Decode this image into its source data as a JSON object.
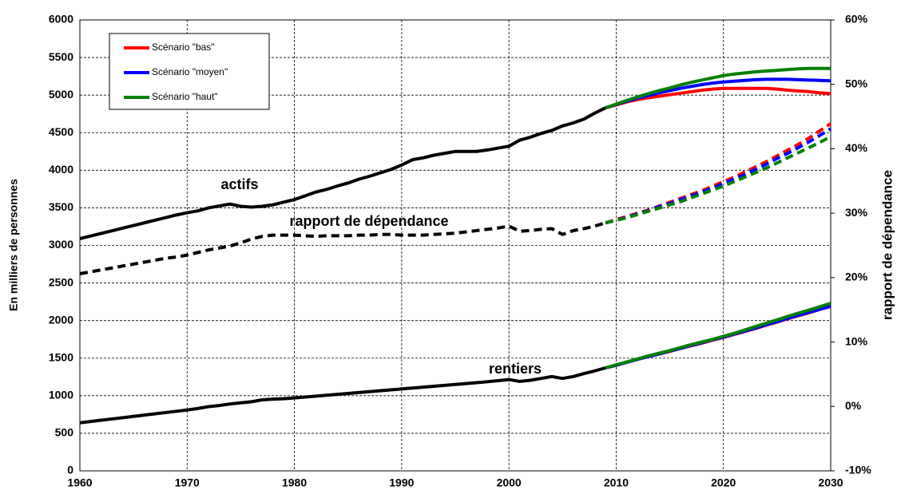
{
  "chart_data": {
    "type": "line",
    "y_label": "En milliers de personnes",
    "y2_label": "rapport de dépendance",
    "xlim": [
      1960,
      2030
    ],
    "xticks": [
      1960,
      1970,
      1980,
      1990,
      2000,
      2010,
      2020,
      2030
    ],
    "ylim": [
      0,
      6000
    ],
    "yticks": [
      0,
      500,
      1000,
      1500,
      2000,
      2500,
      3000,
      3500,
      4000,
      4500,
      5000,
      5500,
      6000
    ],
    "y2lim": [
      -10,
      60
    ],
    "y2ticks": [
      {
        "value": -10,
        "label": "-10%"
      },
      {
        "value": 0,
        "label": "0%"
      },
      {
        "value": 10,
        "label": "10%"
      },
      {
        "value": 20,
        "label": "20%"
      },
      {
        "value": 30,
        "label": "30%"
      },
      {
        "value": 40,
        "label": "40%"
      },
      {
        "value": 50,
        "label": "50%"
      },
      {
        "value": 60,
        "label": "60%"
      }
    ],
    "grid": true,
    "legend": "upper left",
    "x": [
      1960,
      1961,
      1962,
      1963,
      1964,
      1965,
      1966,
      1967,
      1968,
      1969,
      1970,
      1971,
      1972,
      1973,
      1974,
      1975,
      1976,
      1977,
      1978,
      1979,
      1980,
      1981,
      1982,
      1983,
      1984,
      1985,
      1986,
      1987,
      1988,
      1989,
      1990,
      1991,
      1992,
      1993,
      1994,
      1995,
      1996,
      1997,
      1998,
      1999,
      2000,
      2001,
      2002,
      2003,
      2004,
      2005,
      2006,
      2007,
      2008,
      2009
    ],
    "x_projection": [
      2009,
      2010,
      2011,
      2012,
      2013,
      2014,
      2015,
      2016,
      2017,
      2018,
      2019,
      2020,
      2021,
      2022,
      2023,
      2024,
      2025,
      2026,
      2027,
      2028,
      2029,
      2030
    ],
    "series": [
      {
        "name": "actifs",
        "color": "#000000",
        "values": [
          3090,
          3125,
          3160,
          3195,
          3230,
          3265,
          3300,
          3335,
          3370,
          3405,
          3435,
          3460,
          3500,
          3525,
          3550,
          3520,
          3510,
          3520,
          3540,
          3575,
          3610,
          3660,
          3710,
          3745,
          3790,
          3830,
          3880,
          3920,
          3965,
          4010,
          4070,
          4140,
          4165,
          4200,
          4225,
          4250,
          4250,
          4250,
          4270,
          4295,
          4320,
          4400,
          4440,
          4490,
          4530,
          4590,
          4630,
          4680,
          4760,
          4830
        ]
      },
      {
        "name": "rentiers",
        "color": "#000000",
        "values": [
          640,
          657,
          674,
          691,
          708,
          725,
          742,
          759,
          776,
          793,
          810,
          830,
          855,
          870,
          890,
          905,
          920,
          945,
          955,
          960,
          970,
          982,
          994,
          1006,
          1018,
          1030,
          1042,
          1054,
          1066,
          1078,
          1090,
          1102,
          1114,
          1126,
          1138,
          1150,
          1162,
          1174,
          1186,
          1200,
          1215,
          1190,
          1205,
          1230,
          1255,
          1230,
          1255,
          1295,
          1330,
          1370
        ]
      },
      {
        "name": "rapport de dépendance",
        "color": "#000000",
        "axis": "y2",
        "dashed": true,
        "values": [
          20.6,
          20.9,
          21.2,
          21.5,
          21.8,
          22.1,
          22.4,
          22.7,
          23.0,
          23.2,
          23.5,
          23.9,
          24.3,
          24.6,
          24.9,
          25.4,
          26.0,
          26.4,
          26.6,
          26.6,
          26.6,
          26.5,
          26.4,
          26.5,
          26.5,
          26.5,
          26.6,
          26.6,
          26.7,
          26.7,
          26.6,
          26.6,
          26.6,
          26.7,
          26.8,
          26.9,
          27.1,
          27.3,
          27.5,
          27.7,
          28.0,
          27.2,
          27.3,
          27.5,
          27.6,
          26.7,
          27.3,
          27.6,
          28.0,
          28.5
        ]
      }
    ],
    "scenarios": [
      {
        "name": "Scénario \"bas\"",
        "color": "#ff0000",
        "actifs": [
          4830,
          4870,
          4910,
          4940,
          4965,
          4985,
          5005,
          5025,
          5045,
          5065,
          5080,
          5090,
          5090,
          5090,
          5090,
          5090,
          5080,
          5065,
          5055,
          5045,
          5030,
          5020
        ],
        "rentiers": [
          1370,
          1405,
          1445,
          1485,
          1520,
          1555,
          1590,
          1630,
          1665,
          1700,
          1740,
          1775,
          1815,
          1855,
          1895,
          1940,
          1980,
          2025,
          2065,
          2105,
          2150,
          2190
        ],
        "rapport": [
          28.5,
          29.0,
          29.5,
          30.0,
          30.5,
          31.1,
          31.7,
          32.3,
          32.9,
          33.5,
          34.2,
          34.9,
          35.6,
          36.4,
          37.2,
          38.0,
          38.9,
          39.8,
          40.7,
          41.7,
          42.8,
          43.9
        ]
      },
      {
        "name": "Scénario \"moyen\"",
        "color": "#0000ff",
        "actifs": [
          4830,
          4875,
          4920,
          4960,
          4995,
          5030,
          5060,
          5090,
          5115,
          5140,
          5160,
          5175,
          5185,
          5195,
          5205,
          5210,
          5210,
          5210,
          5205,
          5200,
          5195,
          5190
        ],
        "rentiers": [
          1370,
          1405,
          1445,
          1485,
          1520,
          1555,
          1595,
          1630,
          1670,
          1705,
          1745,
          1780,
          1820,
          1860,
          1900,
          1945,
          1985,
          2030,
          2070,
          2110,
          2150,
          2190
        ],
        "rapport": [
          28.5,
          28.9,
          29.4,
          29.9,
          30.4,
          31.0,
          31.5,
          32.1,
          32.7,
          33.3,
          33.9,
          34.6,
          35.3,
          36.0,
          36.8,
          37.6,
          38.5,
          39.3,
          40.2,
          41.1,
          42.1,
          43.1
        ]
      },
      {
        "name": "Scénario \"haut\"",
        "color": "#008000",
        "actifs": [
          4830,
          4880,
          4930,
          4975,
          5020,
          5060,
          5095,
          5135,
          5170,
          5200,
          5230,
          5260,
          5280,
          5295,
          5310,
          5320,
          5330,
          5340,
          5350,
          5355,
          5355,
          5355
        ],
        "rentiers": [
          1370,
          1410,
          1450,
          1490,
          1530,
          1565,
          1600,
          1640,
          1680,
          1715,
          1750,
          1790,
          1830,
          1875,
          1920,
          1965,
          2010,
          2055,
          2100,
          2140,
          2185,
          2230
        ],
        "rapport": [
          28.5,
          28.9,
          29.3,
          29.8,
          30.3,
          30.8,
          31.3,
          31.8,
          32.4,
          33.0,
          33.6,
          34.2,
          34.9,
          35.6,
          36.3,
          37.0,
          37.8,
          38.6,
          39.4,
          40.2,
          41.0,
          41.9
        ]
      }
    ]
  }
}
